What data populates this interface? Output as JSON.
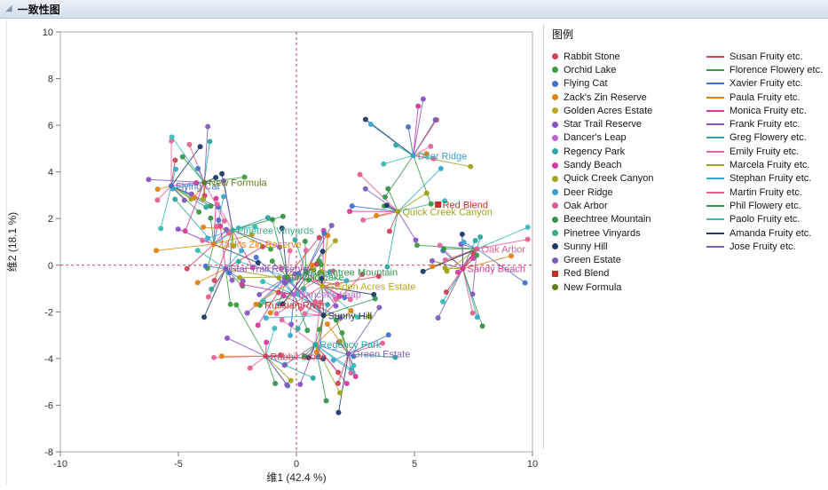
{
  "header": {
    "title": "一致性图"
  },
  "chart_data": {
    "type": "scatter",
    "title": "一致性图",
    "xlabel": "维1 (42.4 %)",
    "ylabel": "维2 (18.1 %)",
    "xlim": [
      -10,
      10
    ],
    "ylim": [
      -8,
      10
    ],
    "x_ticks": [
      -10,
      -5,
      0,
      5,
      10
    ],
    "y_ticks": [
      10,
      8,
      6,
      4,
      2,
      0,
      -2,
      -4,
      -6,
      -8
    ],
    "reference_lines": {
      "x": 0,
      "y": 0,
      "style": "dashed",
      "color": "#C23B4B"
    },
    "legend_title": "图例",
    "spokes_per_product": 15,
    "products": [
      {
        "label": "Rabbit Stone",
        "x": -1.3,
        "y": -3.9,
        "color": "#CE4458",
        "marker": "circle"
      },
      {
        "label": "Orchid Lake",
        "x": -0.4,
        "y": -0.5,
        "color": "#3E9C45",
        "marker": "circle"
      },
      {
        "label": "Flying Cat",
        "x": -5.3,
        "y": 3.4,
        "color": "#4472C8",
        "marker": "circle"
      },
      {
        "label": "Zack's Zin Reserve",
        "x": -3.5,
        "y": 0.9,
        "color": "#E08214",
        "marker": "circle"
      },
      {
        "label": "Golden Acres Estate",
        "x": 1.1,
        "y": -0.9,
        "color": "#BCA81E",
        "marker": "circle"
      },
      {
        "label": "Star Trail Reserve",
        "x": -3.0,
        "y": -0.15,
        "color": "#8A53C6",
        "marker": "circle"
      },
      {
        "label": "Dancer's Leap",
        "x": -0.1,
        "y": -1.25,
        "color": "#B965D2",
        "marker": "circle"
      },
      {
        "label": "Regency Park",
        "x": 0.8,
        "y": -3.4,
        "color": "#2BA8A0",
        "marker": "circle"
      },
      {
        "label": "Sandy Beach",
        "x": 7.05,
        "y": -0.15,
        "color": "#D43B9B",
        "marker": "circle"
      },
      {
        "label": "Quick Creek Canyon",
        "x": 4.3,
        "y": 2.3,
        "color": "#9FA31A",
        "marker": "circle"
      },
      {
        "label": "Deer Ridge",
        "x": 4.95,
        "y": 4.7,
        "color": "#3AA0C8",
        "marker": "circle"
      },
      {
        "label": "Oak Arbor",
        "x": 7.65,
        "y": 0.7,
        "color": "#D85E93",
        "marker": "circle"
      },
      {
        "label": "Beechtree Mountain",
        "x": 0.4,
        "y": -0.3,
        "color": "#35934E",
        "marker": "circle"
      },
      {
        "label": "Pinetree Vinyards",
        "x": -2.7,
        "y": 1.5,
        "color": "#3BAB8B",
        "marker": "circle"
      },
      {
        "label": "Sunny Hill",
        "x": 1.15,
        "y": -2.15,
        "color": "#1F3B68",
        "marker": "circle"
      },
      {
        "label": "Green Estate",
        "x": 2.2,
        "y": -3.8,
        "color": "#7E5FB5",
        "marker": "circle"
      },
      {
        "label": "Red Blend",
        "x": 6.0,
        "y": 2.6,
        "color": "#C2302E",
        "marker": "square"
      },
      {
        "label": "New Formula",
        "x": -3.9,
        "y": 3.55,
        "color": "#5F7D1E",
        "marker": "circle"
      }
    ],
    "judges": [
      {
        "name": "Susan Fruity etc.",
        "color": "#CE4458"
      },
      {
        "name": "Florence Flowery etc.",
        "color": "#3E9C45"
      },
      {
        "name": "Xavier Fruity etc.",
        "color": "#4472C8"
      },
      {
        "name": "Paula Fruity etc.",
        "color": "#E08214"
      },
      {
        "name": "Monica Fruity etc.",
        "color": "#D43B9B"
      },
      {
        "name": "Frank Fruity etc.",
        "color": "#8A53C6"
      },
      {
        "name": "Greg Flowery etc.",
        "color": "#2BA8A0"
      },
      {
        "name": "Emily Fruity etc.",
        "color": "#E0679E"
      },
      {
        "name": "Marcela Fruity etc.",
        "color": "#9FA31A"
      },
      {
        "name": "Stephan Fruity etc.",
        "color": "#3AA9CE"
      },
      {
        "name": "Martin Fruity etc.",
        "color": "#E4628C"
      },
      {
        "name": "Phil Flowery etc.",
        "color": "#35934E"
      },
      {
        "name": "Paolo Fruity etc.",
        "color": "#36BDB4"
      },
      {
        "name": "Amanda Fruity etc.",
        "color": "#1F3B68"
      },
      {
        "name": "Jose Fruity etc.",
        "color": "#7E5FB5"
      }
    ],
    "annotations": [
      {
        "text": "Russian River",
        "x": -1.5,
        "y": -1.7,
        "color": "#C2302E"
      }
    ]
  }
}
